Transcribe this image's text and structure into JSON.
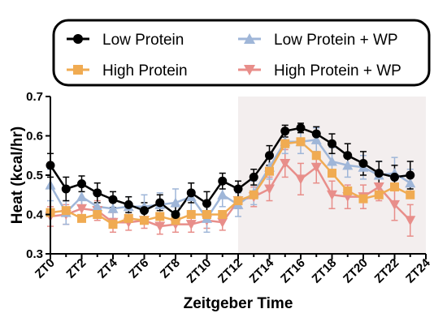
{
  "chart_data": {
    "type": "line",
    "xlabel": "Zeitgeber Time",
    "ylabel": "Heat (kcal/hr)",
    "ylim": [
      0.3,
      0.7
    ],
    "yticks": [
      "0.3",
      "0.4",
      "0.5",
      "0.6",
      "0.7"
    ],
    "xticks": [
      "ZT0",
      "ZT2",
      "ZT4",
      "ZT6",
      "ZT8",
      "ZT10",
      "ZT12",
      "ZT14",
      "ZT16",
      "ZT18",
      "ZT20",
      "ZT22",
      "ZT24"
    ],
    "x": [
      0,
      1,
      2,
      3,
      4,
      5,
      6,
      7,
      8,
      9,
      10,
      11,
      12,
      13,
      14,
      15,
      16,
      17,
      18,
      19,
      20,
      21,
      22,
      23
    ],
    "xlim": [
      0,
      24
    ],
    "dark_phase": [
      12,
      24
    ],
    "dark_phase_color": "#f3eeee",
    "legend_position": "top",
    "grid": false,
    "series": [
      {
        "name": "Low Protein",
        "color": "#000000",
        "marker": "circle",
        "values": [
          0.525,
          0.465,
          0.478,
          0.455,
          0.438,
          0.425,
          0.41,
          0.43,
          0.4,
          0.455,
          0.428,
          0.485,
          0.465,
          0.495,
          0.55,
          0.612,
          0.62,
          0.605,
          0.58,
          0.55,
          0.53,
          0.505,
          0.495,
          0.5
        ],
        "errors": [
          0.03,
          0.03,
          0.02,
          0.025,
          0.02,
          0.02,
          0.02,
          0.02,
          0.02,
          0.025,
          0.03,
          0.02,
          0.02,
          0.02,
          0.025,
          0.015,
          0.012,
          0.018,
          0.025,
          0.03,
          0.03,
          0.03,
          0.03,
          0.035
        ]
      },
      {
        "name": "High Protein",
        "color": "#f0ab52",
        "marker": "square",
        "values": [
          0.405,
          0.41,
          0.39,
          0.4,
          0.375,
          0.39,
          0.385,
          0.395,
          0.385,
          0.4,
          0.4,
          0.4,
          0.435,
          0.45,
          0.51,
          0.58,
          0.585,
          0.55,
          0.505,
          0.46,
          0.44,
          0.45,
          0.47,
          0.45
        ]
      },
      {
        "name": "Low Protein + WP",
        "color": "#9fb6d8",
        "marker": "triangle-up",
        "values": [
          0.475,
          0.405,
          0.445,
          0.42,
          0.415,
          0.42,
          0.42,
          0.425,
          0.43,
          0.445,
          0.39,
          0.45,
          0.425,
          0.455,
          0.52,
          0.585,
          0.585,
          0.59,
          0.535,
          0.525,
          0.52,
          0.5,
          0.505,
          0.48
        ],
        "errors": [
          0.04,
          0.03,
          0.03,
          0.03,
          0.025,
          0.025,
          0.03,
          0.03,
          0.035,
          0.035,
          0.035,
          0.03,
          0.03,
          0.03,
          0.03,
          0.03,
          0.03,
          0.03,
          0.035,
          0.03,
          0.03,
          0.035,
          0.04,
          0.035
        ]
      },
      {
        "name": "High Protein + WP",
        "color": "#e88e8a",
        "marker": "triangle-down",
        "values": [
          0.395,
          0.4,
          0.415,
          0.41,
          0.38,
          0.38,
          0.385,
          0.37,
          0.375,
          0.375,
          0.385,
          0.38,
          0.435,
          0.445,
          0.465,
          0.53,
          0.49,
          0.52,
          0.45,
          0.445,
          0.445,
          0.47,
          0.425,
          0.385
        ],
        "errors": [
          0.025,
          0.025,
          0.025,
          0.025,
          0.025,
          0.02,
          0.02,
          0.02,
          0.02,
          0.02,
          0.02,
          0.02,
          0.02,
          0.025,
          0.03,
          0.035,
          0.04,
          0.04,
          0.035,
          0.03,
          0.03,
          0.035,
          0.04,
          0.04
        ]
      }
    ]
  }
}
